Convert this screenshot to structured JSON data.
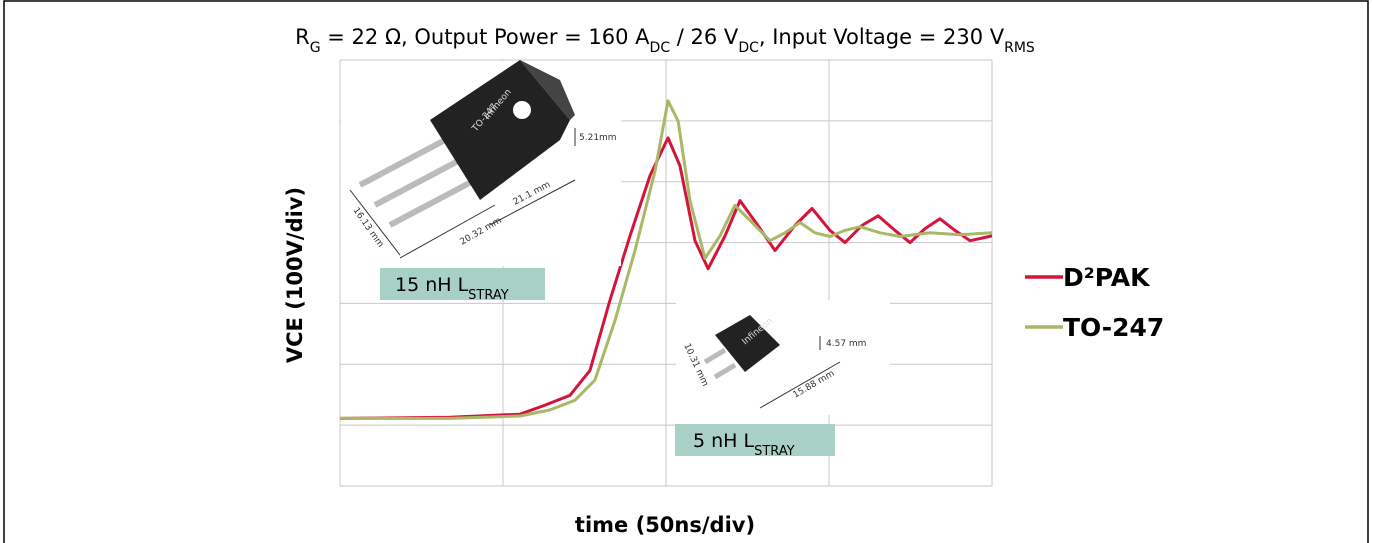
{
  "chart_data": {
    "type": "line",
    "title": [
      "R",
      "G",
      " = 22 Ω, Output Power = 160 A",
      "DC",
      " / 26 V",
      "DC",
      ", Input Voltage = 230 V",
      "RMS"
    ],
    "x_label": "time (50ns/div)",
    "y_label": "VCE (100V/div)",
    "xlim": [
      0,
      4
    ],
    "ylim": [
      0,
      7
    ],
    "grid": true,
    "legend": "right",
    "series": [
      {
        "name": "D²PAK",
        "color": "#d5143c",
        "x": [
          0,
          0.675,
          1.104,
          1.258,
          1.411,
          1.534,
          1.656,
          1.779,
          1.902,
          2.012,
          2.086,
          2.178,
          2.258,
          2.362,
          2.454,
          2.564,
          2.669,
          2.791,
          2.896,
          3.006,
          3.098,
          3.202,
          3.301,
          3.405,
          3.497,
          3.589,
          3.681,
          3.773,
          3.865,
          4.0
        ],
        "values": [
          1.11,
          1.13,
          1.18,
          1.33,
          1.49,
          1.9,
          3.05,
          4.11,
          5.1,
          5.72,
          5.26,
          4.03,
          3.57,
          4.11,
          4.69,
          4.28,
          3.87,
          4.28,
          4.56,
          4.2,
          4.0,
          4.28,
          4.44,
          4.2,
          4.0,
          4.23,
          4.39,
          4.2,
          4.03,
          4.11
        ]
      },
      {
        "name": "TO-247",
        "color": "#a8b867",
        "x": [
          0,
          0.675,
          1.104,
          1.289,
          1.442,
          1.564,
          1.687,
          1.81,
          1.933,
          2.012,
          2.074,
          2.147,
          2.239,
          2.331,
          2.423,
          2.528,
          2.638,
          2.73,
          2.822,
          2.914,
          3.006,
          3.098,
          3.19,
          3.313,
          3.436,
          3.62,
          3.804,
          4.0
        ],
        "values": [
          1.11,
          1.11,
          1.15,
          1.25,
          1.41,
          1.74,
          2.72,
          3.87,
          5.18,
          6.33,
          6.0,
          4.69,
          3.74,
          4.11,
          4.61,
          4.33,
          4.03,
          4.16,
          4.33,
          4.16,
          4.1,
          4.2,
          4.26,
          4.16,
          4.1,
          4.16,
          4.13,
          4.16
        ]
      }
    ],
    "annotations": [
      {
        "text": "15 nH L",
        "sub": "STRAY"
      },
      {
        "text": "5 nH L",
        "sub": "STRAY"
      }
    ],
    "package_labels": {
      "to247": {
        "marking": "TO-247",
        "brand": "Infineon",
        "dims": [
          "5.21mm",
          "21.1 mm",
          "20.32 mm",
          "16.13 mm"
        ]
      },
      "d2pak": {
        "brand": "Infineon",
        "dims": [
          "4.57 mm",
          "15.88 mm",
          "10.31 mm"
        ]
      }
    }
  }
}
